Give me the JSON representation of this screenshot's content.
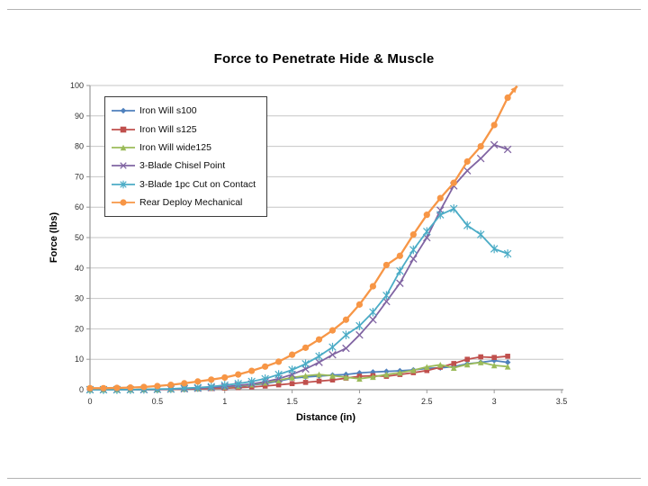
{
  "slide": {
    "background": "#ffffff",
    "border_rule_color": "#b3b3b3"
  },
  "chart_data": {
    "type": "line",
    "title": "Force to Penetrate Hide & Muscle",
    "xlabel": "Distance (in)",
    "ylabel": "Force (lbs)",
    "xlim": [
      0,
      3.5
    ],
    "ylim": [
      0,
      100
    ],
    "grid": "horizontal",
    "legend_position": "top-left-inside",
    "x_ticks": [
      "0",
      "0.5",
      "1",
      "1.5",
      "2",
      "2.5",
      "3",
      "3.5"
    ],
    "y_ticks": [
      "0",
      "10",
      "20",
      "30",
      "40",
      "50",
      "60",
      "70",
      "80",
      "90",
      "100"
    ],
    "x": [
      0,
      0.1,
      0.2,
      0.3,
      0.4,
      0.5,
      0.6,
      0.7,
      0.8,
      0.9,
      1.0,
      1.1,
      1.2,
      1.3,
      1.4,
      1.5,
      1.6,
      1.7,
      1.8,
      1.9,
      2.0,
      2.1,
      2.2,
      2.3,
      2.4,
      2.5,
      2.6,
      2.7,
      2.8,
      2.9,
      3.0,
      3.1
    ],
    "series": [
      {
        "name": "Iron Will s100",
        "color": "#4F81BD",
        "marker": "diamond",
        "values": [
          0,
          0,
          0,
          0,
          0.1,
          0.1,
          0.2,
          0.3,
          0.4,
          0.6,
          0.8,
          1.1,
          1.5,
          2,
          2.8,
          3.8,
          4.2,
          4.5,
          4.8,
          5,
          5.5,
          5.8,
          6,
          6.2,
          6.5,
          7,
          7.2,
          7.6,
          8.5,
          9,
          9.6,
          9
        ]
      },
      {
        "name": "Iron Will s125",
        "color": "#C0504D",
        "marker": "square",
        "values": [
          0,
          0,
          0,
          0,
          0,
          0.1,
          0.1,
          0.2,
          0.3,
          0.4,
          0.5,
          0.7,
          0.9,
          1.2,
          1.6,
          2,
          2.4,
          2.8,
          3.2,
          3.8,
          4.4,
          4.6,
          4.4,
          5,
          5.6,
          6.3,
          7.4,
          8.6,
          10,
          10.8,
          10.6,
          11
        ]
      },
      {
        "name": "Iron Will wide125",
        "color": "#9BBB59",
        "marker": "triangle",
        "values": [
          0,
          0,
          0,
          0,
          0.1,
          0.1,
          0.2,
          0.3,
          0.5,
          0.7,
          0.9,
          1.2,
          1.7,
          2.3,
          3.1,
          4,
          4.6,
          5,
          4.6,
          4.1,
          3.6,
          4.2,
          5,
          5.6,
          6.4,
          7.5,
          8.2,
          7.2,
          8.3,
          9,
          8,
          7.6
        ]
      },
      {
        "name": "3-Blade Chisel Point",
        "color": "#8064A2",
        "marker": "x",
        "values": [
          0,
          0,
          0,
          0,
          0,
          0.1,
          0.2,
          0.3,
          0.5,
          0.7,
          1,
          1.4,
          1.9,
          2.6,
          3.6,
          5,
          6.8,
          9,
          11.5,
          13.6,
          18,
          23,
          29,
          35,
          43,
          50,
          59,
          67,
          72,
          76,
          80.5,
          79
        ]
      },
      {
        "name": "3-Blade 1pc Cut on Contact",
        "color": "#4BACC6",
        "marker": "star",
        "values": [
          0,
          0,
          0,
          0,
          0.1,
          0.2,
          0.3,
          0.5,
          0.7,
          1,
          1.5,
          2,
          2.7,
          3.6,
          5,
          6.5,
          8.5,
          11,
          14,
          18,
          21,
          25.5,
          31,
          39,
          46,
          52,
          57.5,
          59.5,
          54,
          51,
          46.3,
          44.7
        ]
      },
      {
        "name": "Rear Deploy Mechanical",
        "color": "#F79646",
        "marker": "circle",
        "values": [
          0.5,
          0.5,
          0.6,
          0.7,
          0.9,
          1.2,
          1.6,
          2.1,
          2.7,
          3.3,
          4,
          5,
          6.2,
          7.6,
          9.2,
          11.5,
          13.8,
          16.5,
          19.5,
          23,
          28,
          34,
          41,
          44,
          51,
          57.5,
          63,
          68,
          75,
          80,
          87,
          96
        ],
        "arrow_tip": [
          3.17,
          99.8
        ]
      }
    ],
    "axis_color": "#9a9a9a",
    "gridline_color": "#c6c6c6",
    "tick_label_color": "#2f2f2f"
  }
}
